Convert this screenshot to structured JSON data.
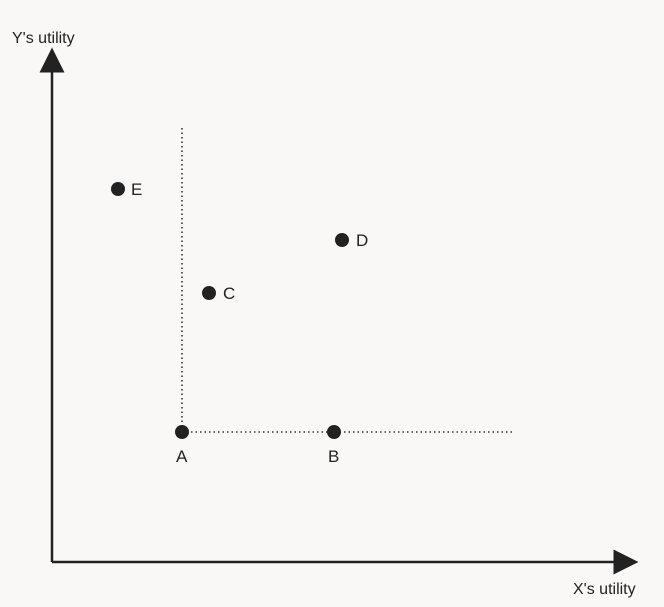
{
  "axes": {
    "y_label": "Y's utility",
    "x_label": "X's utility"
  },
  "points": [
    {
      "id": "A",
      "label": "A"
    },
    {
      "id": "B",
      "label": "B"
    },
    {
      "id": "C",
      "label": "C"
    },
    {
      "id": "D",
      "label": "D"
    },
    {
      "id": "E",
      "label": "E"
    }
  ],
  "colors": {
    "ink": "#222222",
    "background": "#f9f8f6"
  }
}
